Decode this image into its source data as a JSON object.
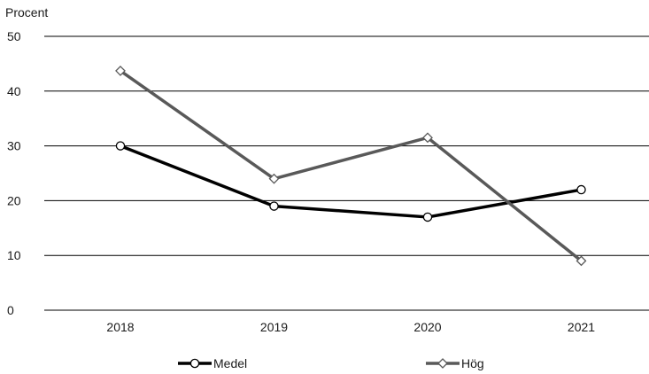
{
  "chart_data": {
    "type": "line",
    "title": "",
    "ylabel": "Procent",
    "xlabel": "",
    "categories": [
      "2018",
      "2019",
      "2020",
      "2021"
    ],
    "ylim": [
      0,
      50
    ],
    "yticks": [
      0,
      10,
      20,
      30,
      40,
      50
    ],
    "grid": true,
    "legend_position": "bottom",
    "series": [
      {
        "name": "Medel",
        "values": [
          30,
          19,
          17,
          22
        ],
        "color": "#000000",
        "marker": "circle"
      },
      {
        "name": "Hög",
        "values": [
          43.7,
          24,
          31.5,
          9
        ],
        "color": "#595959",
        "marker": "diamond"
      }
    ]
  }
}
